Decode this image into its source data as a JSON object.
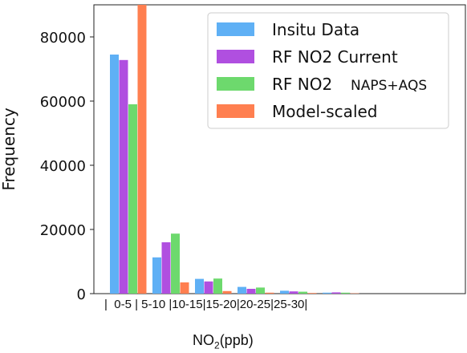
{
  "chart_data": {
    "type": "bar",
    "categories": [
      "0-5",
      "5-10",
      "10-15",
      "15-20",
      "20-25",
      "25-30"
    ],
    "category_tick_text": "|  0-5 | 5-10 |10-15|15-20|20-25|25-30|",
    "xlabel_main": "NO",
    "xlabel_sub": "2",
    "xlabel_unit": "(ppb)",
    "ylabel": "Frequency",
    "ylim": [
      0,
      90000
    ],
    "yticks": [
      0,
      20000,
      40000,
      60000,
      80000
    ],
    "grid": false,
    "legend_position": "top-right",
    "series": [
      {
        "name": "Insitu Data",
        "color": "#5fb0f5",
        "values": [
          74500,
          11300,
          4600,
          2100,
          900,
          300
        ]
      },
      {
        "name": "RF NO2 Current",
        "color": "#b04fe0",
        "values": [
          72800,
          16000,
          3800,
          1500,
          700,
          400
        ]
      },
      {
        "name": "RF NO2",
        "name_suffix": "NAPS+AQS",
        "color": "#6dd96d",
        "values": [
          59000,
          18700,
          4700,
          1900,
          600,
          300
        ]
      },
      {
        "name": "Model-scaled",
        "color": "#ff7f50",
        "values": [
          90000,
          3500,
          800,
          300,
          200,
          100
        ]
      }
    ]
  }
}
